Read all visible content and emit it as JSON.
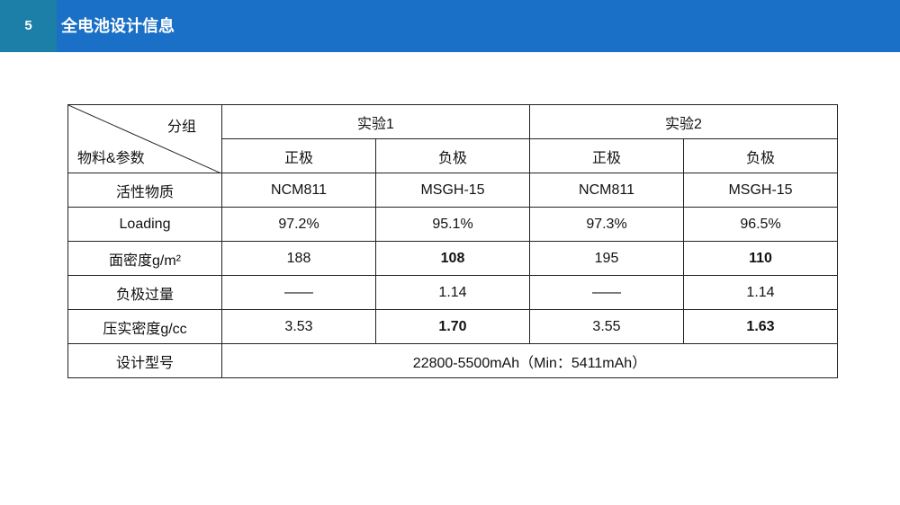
{
  "header": {
    "page_number": "5",
    "title": "全电池设计信息"
  },
  "table": {
    "corner_top": "分组",
    "corner_bottom": "物料&参数",
    "groups": [
      "实验1",
      "实验2"
    ],
    "subheaders": [
      "正极",
      "负极",
      "正极",
      "负极"
    ],
    "rows": [
      {
        "label": "活性物质",
        "cells": [
          "NCM811",
          "MSGH-15",
          "NCM811",
          "MSGH-15"
        ]
      },
      {
        "label": "Loading",
        "cells": [
          "97.2%",
          "95.1%",
          "97.3%",
          "96.5%"
        ]
      },
      {
        "label": "面密度g/m²",
        "cells": [
          "188",
          "108",
          "195",
          "110"
        ]
      },
      {
        "label": "负极过量",
        "cells": [
          "——",
          "1.14",
          "——",
          "1.14"
        ]
      },
      {
        "label": "压实密度g/cc",
        "cells": [
          "3.53",
          "1.70",
          "3.55",
          "1.63"
        ]
      }
    ],
    "design_label": "设计型号",
    "design_value": "22800-5500mAh（Min：5411mAh）"
  }
}
